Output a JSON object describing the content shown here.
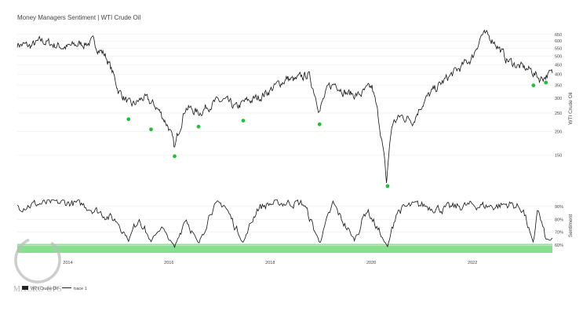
{
  "chart_data": [
    {
      "type": "line",
      "title": "Money Managers Sentiment | WTI Crude Oil",
      "ylabel": "WTI Crude Oil",
      "y_scale": "log",
      "ylim": [
        100,
        700
      ],
      "y_ticks": [
        "150",
        "200",
        "250",
        "300",
        "350",
        "400",
        "450",
        "500",
        "550",
        "600",
        "650"
      ],
      "series": [
        {
          "name": "WTI Crude Oil",
          "x": [
            "2013-01-01",
            "2013-04-01",
            "2013-07-01",
            "2013-10-01",
            "2014-01-01",
            "2014-04-01",
            "2014-07-01",
            "2014-10-01",
            "2015-01-01",
            "2015-04-01",
            "2015-07-01",
            "2015-10-01",
            "2016-01-01",
            "2016-02-11",
            "2016-05-01",
            "2016-08-01",
            "2016-11-01",
            "2017-02-01",
            "2017-05-01",
            "2017-07-01",
            "2017-10-01",
            "2018-01-01",
            "2018-05-01",
            "2018-07-01",
            "2018-10-03",
            "2018-12-24",
            "2019-03-01",
            "2019-04-20",
            "2019-07-01",
            "2019-10-01",
            "2020-01-06",
            "2020-04-20",
            "2020-06-01",
            "2020-08-01",
            "2020-11-01",
            "2021-01-01",
            "2021-04-01",
            "2021-07-01",
            "2021-10-01",
            "2022-01-01",
            "2022-03-08",
            "2022-06-01",
            "2022-09-01",
            "2022-12-01",
            "2023-03-01",
            "2023-05-01",
            "2023-07-01"
          ],
          "values": [
            580,
            560,
            600,
            570,
            555,
            580,
            590,
            500,
            330,
            270,
            300,
            270,
            210,
            160,
            270,
            250,
            280,
            290,
            265,
            285,
            300,
            330,
            380,
            370,
            400,
            260,
            340,
            360,
            320,
            310,
            340,
            105,
            220,
            240,
            230,
            280,
            330,
            380,
            430,
            490,
            650,
            610,
            480,
            440,
            420,
            380,
            400
          ]
        }
      ],
      "markers": {
        "color": "#22c03a",
        "points": [
          {
            "x": "2015-03-15",
            "y": 232
          },
          {
            "x": "2015-08-25",
            "y": 205
          },
          {
            "x": "2016-02-11",
            "y": 148
          },
          {
            "x": "2016-08-02",
            "y": 212
          },
          {
            "x": "2017-06-21",
            "y": 228
          },
          {
            "x": "2018-12-24",
            "y": 218
          },
          {
            "x": "2020-04-28",
            "y": 103
          },
          {
            "x": "2023-03-17",
            "y": 350
          },
          {
            "x": "2023-06-15",
            "y": 362
          }
        ]
      }
    },
    {
      "type": "line",
      "ylabel": "Sentiment",
      "ylim": [
        54,
        96
      ],
      "y_ticks": [
        "60%",
        "70%",
        "80%",
        "90%"
      ],
      "x_ticks": [
        "2014",
        "2016",
        "2018",
        "2020",
        "2022"
      ],
      "band": {
        "y_from": 54,
        "y_to": 61,
        "color": "#86e08d"
      },
      "series": [
        {
          "name": "trace 1",
          "x": [
            "2013-01-01",
            "2013-06-01",
            "2014-01-01",
            "2014-05-01",
            "2014-09-01",
            "2015-01-01",
            "2015-03-15",
            "2015-06-01",
            "2015-08-25",
            "2015-11-01",
            "2016-02-11",
            "2016-05-01",
            "2016-08-02",
            "2016-11-01",
            "2017-02-01",
            "2017-06-21",
            "2017-10-01",
            "2018-01-01",
            "2018-06-01",
            "2018-09-01",
            "2018-12-24",
            "2019-04-01",
            "2019-06-01",
            "2019-09-01",
            "2019-12-01",
            "2020-04-28",
            "2020-07-01",
            "2020-10-01",
            "2021-01-01",
            "2021-06-01",
            "2021-10-01",
            "2022-01-01",
            "2022-06-01",
            "2022-10-01",
            "2023-01-01",
            "2023-03-17",
            "2023-04-15",
            "2023-06-15"
          ],
          "values": [
            90,
            92,
            93,
            91,
            85,
            78,
            64,
            82,
            62,
            75,
            58,
            82,
            60,
            88,
            92,
            62,
            89,
            92,
            93,
            92,
            62,
            92,
            80,
            64,
            88,
            58,
            86,
            90,
            91,
            88,
            90,
            91,
            90,
            92,
            88,
            60,
            89,
            64
          ]
        }
      ]
    }
  ],
  "legend": {
    "items": [
      {
        "label": "WTI Crude Oil"
      },
      {
        "label": "trace 1"
      }
    ]
  },
  "watermark": {
    "text": "MACRO OPS"
  }
}
